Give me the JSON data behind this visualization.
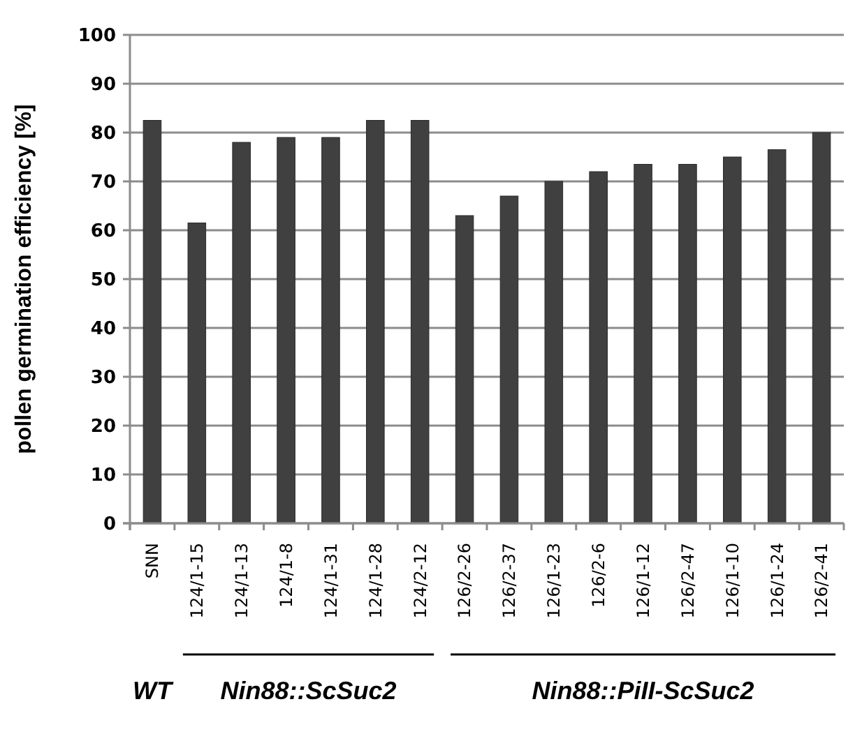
{
  "chart_data": {
    "type": "bar",
    "ylabel": "pollen germination efficiency [%]",
    "categories": [
      "SNN",
      "124/1-15",
      "124/1-13",
      "124/1-8",
      "124/1-31",
      "124/1-28",
      "124/2-12",
      "126/2-26",
      "126/2-37",
      "126/1-23",
      "126/2-6",
      "126/1-12",
      "126/2-47",
      "126/1-10",
      "126/1-24",
      "126/2-41"
    ],
    "values": [
      82.5,
      61.5,
      78,
      79,
      79,
      82.5,
      82.5,
      63,
      67,
      70,
      72,
      73.5,
      73.5,
      75,
      76.5,
      80
    ],
    "color": "#404040",
    "ylim": [
      0,
      100
    ],
    "yticks": [
      0,
      10,
      20,
      30,
      40,
      50,
      60,
      70,
      80,
      90,
      100
    ],
    "grid": "y",
    "annotations": [
      "WT",
      "Nin88::ScSuc2",
      "Nin88::PiII-ScSuc2"
    ]
  }
}
